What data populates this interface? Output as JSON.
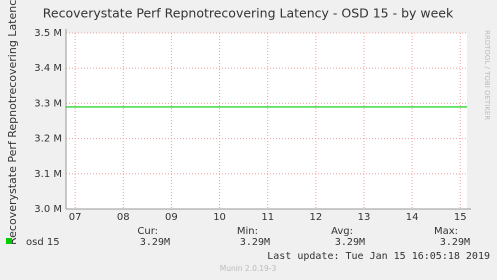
{
  "chart_data": {
    "type": "line",
    "title": "Recoverystate Perf Repnotrecovering Latency - OSD 15 - by week",
    "y_label": "Recoverystate Perf Repnotrecovering Latenc",
    "side_text": "RRDTOOL / TOBI OETIKER",
    "x": [
      7.31,
      15.64
    ],
    "series": [
      {
        "name": "osd 15",
        "color": "#00cc00",
        "values": [
          3290000,
          3290000
        ]
      }
    ],
    "xlim": [
      7.31,
      15.64
    ],
    "xticks": [
      {
        "value": 7.5,
        "label": "07"
      },
      {
        "value": 8.5,
        "label": "08"
      },
      {
        "value": 9.5,
        "label": "09"
      },
      {
        "value": 10.5,
        "label": "10"
      },
      {
        "value": 11.5,
        "label": "11"
      },
      {
        "value": 12.5,
        "label": "12"
      },
      {
        "value": 13.5,
        "label": "13"
      },
      {
        "value": 14.5,
        "label": "14"
      },
      {
        "value": 15.5,
        "label": "15"
      }
    ],
    "ylim": [
      3000000,
      3500000
    ],
    "yticks": [
      {
        "value": 3000000,
        "label": "3.0 M"
      },
      {
        "value": 3100000,
        "label": "3.1 M"
      },
      {
        "value": 3200000,
        "label": "3.2 M"
      },
      {
        "value": 3300000,
        "label": "3.3 M"
      },
      {
        "value": 3400000,
        "label": "3.4 M"
      },
      {
        "value": 3500000,
        "label": "3.5 M"
      }
    ],
    "grid": true,
    "legend": {
      "headers": [
        "Cur:",
        "Min:",
        "Avg:",
        "Max:"
      ],
      "stats": [
        {
          "value": 3290000,
          "label": "3.29M"
        },
        {
          "value": 3290000,
          "label": "3.29M"
        },
        {
          "value": 3290000,
          "label": "3.29M"
        },
        {
          "value": 3290000,
          "label": "3.29M"
        }
      ]
    },
    "last_update": "Last update:  Tue Jan 15 16:05:18 2019",
    "footer": "Munin 2.0.19-3"
  }
}
